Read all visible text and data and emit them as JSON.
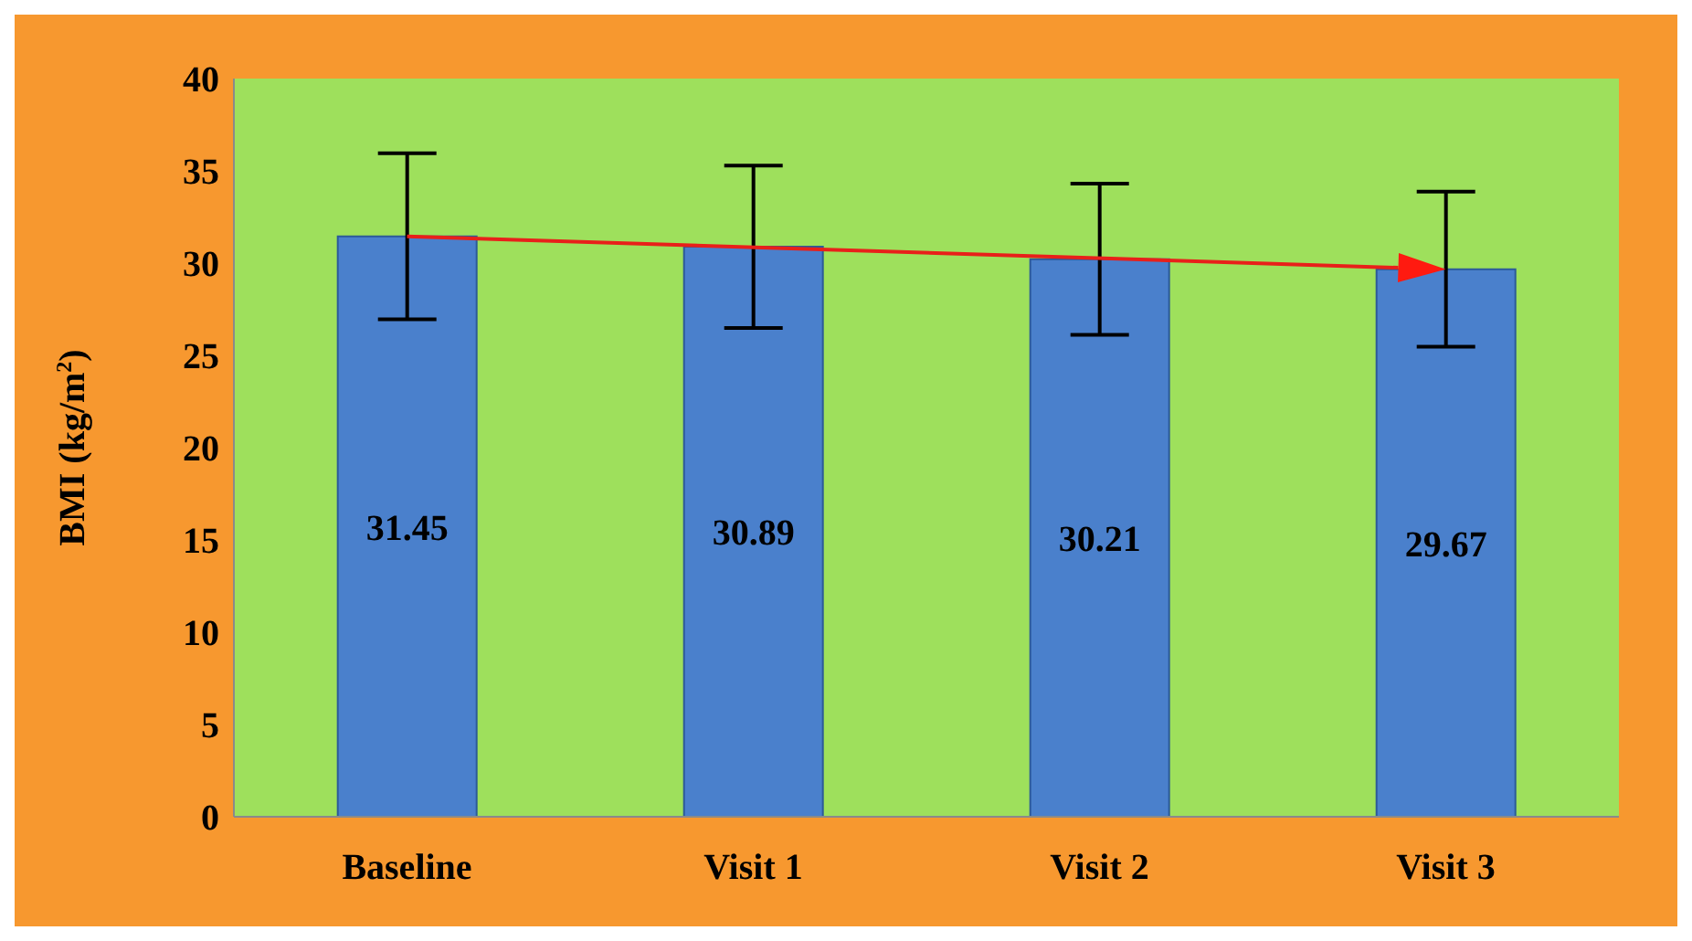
{
  "chart_data": {
    "type": "bar",
    "ylabel": "BMI (kg/m$^{2}$)",
    "categories": [
      "Baseline",
      "Visit 1",
      "Visit 2",
      "Visit 3"
    ],
    "values": [
      31.45,
      30.89,
      30.21,
      29.67
    ],
    "errors": [
      4.5,
      4.4,
      4.1,
      4.2
    ],
    "color": "#4a80cc",
    "data_labels": true,
    "ylim": [
      0,
      40
    ],
    "yticks": [
      0,
      5,
      10,
      15,
      20,
      25,
      30,
      35,
      40
    ],
    "grid": false
  }
}
